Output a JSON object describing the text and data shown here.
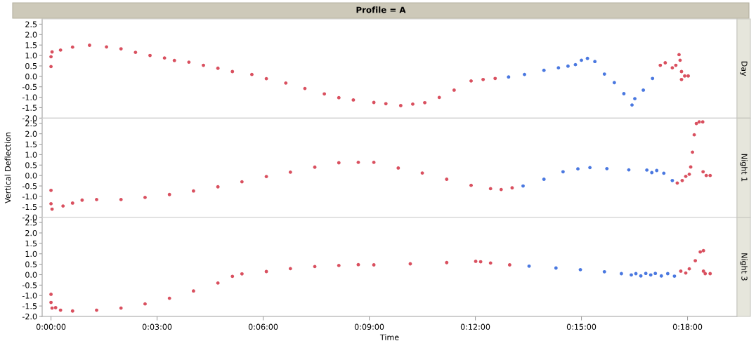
{
  "chart_data": [
    {
      "type": "scatter",
      "subtitle": "Profile = A",
      "title": "Day",
      "marker": "circle",
      "tick_labels": "y",
      "xlim": [
        -0.25,
        19.4
      ],
      "ylim": [
        -2.0,
        2.75
      ],
      "yticks": [
        {
          "value": -2,
          "label": "-2.0"
        },
        {
          "value": -1.5,
          "label": "-1.5"
        },
        {
          "value": -1,
          "label": "-1.0"
        },
        {
          "value": -0.5,
          "label": "-0.5"
        },
        {
          "value": 0,
          "label": "0.0"
        },
        {
          "value": 0.5,
          "label": "0.5"
        },
        {
          "value": 1,
          "label": "1.0"
        },
        {
          "value": 1.5,
          "label": "1.5"
        },
        {
          "value": 2,
          "label": "2.0"
        },
        {
          "value": 2.5,
          "label": "2.5"
        }
      ],
      "series": [
        {
          "color": "#d9505f",
          "x": [
            0,
            0,
            0.03,
            0.27,
            0.61,
            1.09,
            1.57,
            1.98,
            2.39,
            2.8,
            3.21,
            3.49,
            3.9,
            4.31,
            4.72,
            5.13,
            5.68,
            6.09,
            6.64,
            7.18,
            7.73,
            8.14,
            8.55,
            9.13,
            9.47,
            9.89,
            10.23,
            10.57,
            10.98,
            11.4,
            11.88,
            12.22,
            12.56,
            17.23,
            17.37,
            17.57,
            17.67,
            17.76,
            17.79,
            17.83,
            17.83,
            17.92,
            18.02
          ],
          "values": [
            0.94,
            0.47,
            1.17,
            1.26,
            1.4,
            1.49,
            1.41,
            1.32,
            1.15,
            1.0,
            0.88,
            0.76,
            0.68,
            0.53,
            0.39,
            0.23,
            0.09,
            -0.11,
            -0.32,
            -0.58,
            -0.84,
            -1.02,
            -1.13,
            -1.25,
            -1.31,
            -1.4,
            -1.33,
            -1.26,
            -1.01,
            -0.66,
            -0.22,
            -0.15,
            -0.1,
            0.53,
            0.65,
            0.41,
            0.53,
            1.04,
            0.77,
            0.23,
            -0.15,
            0.02,
            0.02
          ]
        },
        {
          "color": "#4a78e0",
          "x": [
            12.94,
            13.39,
            13.94,
            14.35,
            14.62,
            14.83,
            15.0,
            15.17,
            15.38,
            15.65,
            15.93,
            16.2,
            16.43,
            16.51,
            16.75,
            17.01
          ],
          "values": [
            -0.03,
            0.09,
            0.29,
            0.41,
            0.49,
            0.56,
            0.77,
            0.86,
            0.71,
            0.11,
            -0.3,
            -0.83,
            -1.37,
            -1.07,
            -0.66,
            -0.1
          ]
        }
      ]
    },
    {
      "type": "scatter",
      "title": "Night 1",
      "ylabel": "Vertical Deflection",
      "marker": "circle",
      "tick_labels": "y",
      "xlim": [
        -0.25,
        19.4
      ],
      "ylim": [
        -2.0,
        2.75
      ],
      "yticks": [
        {
          "value": -2,
          "label": "-2.0"
        },
        {
          "value": -1.5,
          "label": "-1.5"
        },
        {
          "value": -1,
          "label": "-1.0"
        },
        {
          "value": -0.5,
          "label": "-0.5"
        },
        {
          "value": 0,
          "label": "0.0"
        },
        {
          "value": 0.5,
          "label": "0.5"
        },
        {
          "value": 1,
          "label": "1.0"
        },
        {
          "value": 1.5,
          "label": "1.5"
        },
        {
          "value": 2,
          "label": "2.0"
        },
        {
          "value": 2.5,
          "label": "2.5"
        }
      ],
      "series": [
        {
          "color": "#d9505f",
          "x": [
            0,
            0,
            0.03,
            0.34,
            0.61,
            0.88,
            1.29,
            1.98,
            2.66,
            3.35,
            4.03,
            4.72,
            5.4,
            6.09,
            6.77,
            7.46,
            8.14,
            8.69,
            9.13,
            9.82,
            10.5,
            11.19,
            11.88,
            12.43,
            12.73,
            13.04,
            17.71,
            17.85,
            17.95,
            18.05,
            18.09,
            18.14,
            18.19,
            18.25,
            18.33,
            18.43,
            18.44,
            18.53,
            18.64
          ],
          "values": [
            -0.71,
            -1.35,
            -1.61,
            -1.46,
            -1.32,
            -1.18,
            -1.15,
            -1.15,
            -1.05,
            -0.91,
            -0.74,
            -0.54,
            -0.3,
            -0.05,
            0.16,
            0.4,
            0.61,
            0.63,
            0.63,
            0.36,
            0.12,
            -0.18,
            -0.47,
            -0.63,
            -0.67,
            -0.59,
            -0.36,
            -0.24,
            -0.04,
            0.06,
            0.41,
            1.12,
            1.95,
            2.49,
            2.57,
            2.57,
            0.18,
            0.0,
            0.0
          ]
        },
        {
          "color": "#4a78e0",
          "x": [
            13.35,
            13.94,
            14.48,
            14.9,
            15.24,
            15.72,
            16.34,
            16.85,
            16.99,
            17.13,
            17.33,
            17.57
          ],
          "values": [
            -0.5,
            -0.18,
            0.18,
            0.32,
            0.38,
            0.33,
            0.27,
            0.26,
            0.14,
            0.24,
            0.11,
            -0.24
          ]
        }
      ]
    },
    {
      "type": "scatter",
      "title": "Night 3",
      "xlabel": "Time",
      "marker": "circle",
      "xlim": [
        -0.25,
        19.4
      ],
      "ylim": [
        -2.0,
        2.75
      ],
      "xticks": [
        {
          "value": 0,
          "label": "0:00:00"
        },
        {
          "value": 3,
          "label": "0:03:00"
        },
        {
          "value": 6,
          "label": "0:06:00"
        },
        {
          "value": 9,
          "label": "0:09:00"
        },
        {
          "value": 12,
          "label": "0:12:00"
        },
        {
          "value": 15,
          "label": "0:15:00"
        },
        {
          "value": 18,
          "label": "0:18:00"
        }
      ],
      "yticks": [
        {
          "value": -2,
          "label": "-2.0"
        },
        {
          "value": -1.5,
          "label": "-1.5"
        },
        {
          "value": -1,
          "label": "-1.0"
        },
        {
          "value": -0.5,
          "label": "-0.5"
        },
        {
          "value": 0,
          "label": "0.0"
        },
        {
          "value": 0.5,
          "label": "0.5"
        },
        {
          "value": 1,
          "label": "1.0"
        },
        {
          "value": 1.5,
          "label": "1.5"
        },
        {
          "value": 2,
          "label": "2.0"
        },
        {
          "value": 2.5,
          "label": "2.5"
        }
      ],
      "series": [
        {
          "color": "#d9505f",
          "x": [
            0,
            0,
            0.03,
            0.13,
            0.27,
            0.61,
            1.29,
            1.98,
            2.66,
            3.35,
            4.03,
            4.72,
            5.13,
            5.4,
            6.09,
            6.77,
            7.46,
            8.14,
            8.69,
            9.13,
            10.16,
            11.19,
            12.01,
            12.15,
            12.43,
            12.97,
            17.81,
            17.95,
            18.05,
            18.22,
            18.36,
            18.45,
            18.45,
            18.5,
            18.64
          ],
          "values": [
            -0.94,
            -1.33,
            -1.6,
            -1.58,
            -1.7,
            -1.74,
            -1.7,
            -1.6,
            -1.4,
            -1.13,
            -0.78,
            -0.4,
            -0.08,
            0.04,
            0.15,
            0.29,
            0.39,
            0.44,
            0.48,
            0.47,
            0.52,
            0.58,
            0.64,
            0.62,
            0.56,
            0.47,
            0.17,
            0.08,
            0.28,
            0.67,
            1.09,
            1.15,
            0.17,
            0.05,
            0.05
          ]
        },
        {
          "color": "#4a78e0",
          "x": [
            13.52,
            14.28,
            14.97,
            15.65,
            16.13,
            16.41,
            16.54,
            16.68,
            16.82,
            16.96,
            17.09,
            17.26,
            17.44,
            17.63
          ],
          "values": [
            0.41,
            0.32,
            0.24,
            0.14,
            0.05,
            -0.01,
            0.05,
            -0.06,
            0.06,
            -0.01,
            0.06,
            -0.06,
            0.05,
            -0.07
          ]
        }
      ]
    }
  ]
}
